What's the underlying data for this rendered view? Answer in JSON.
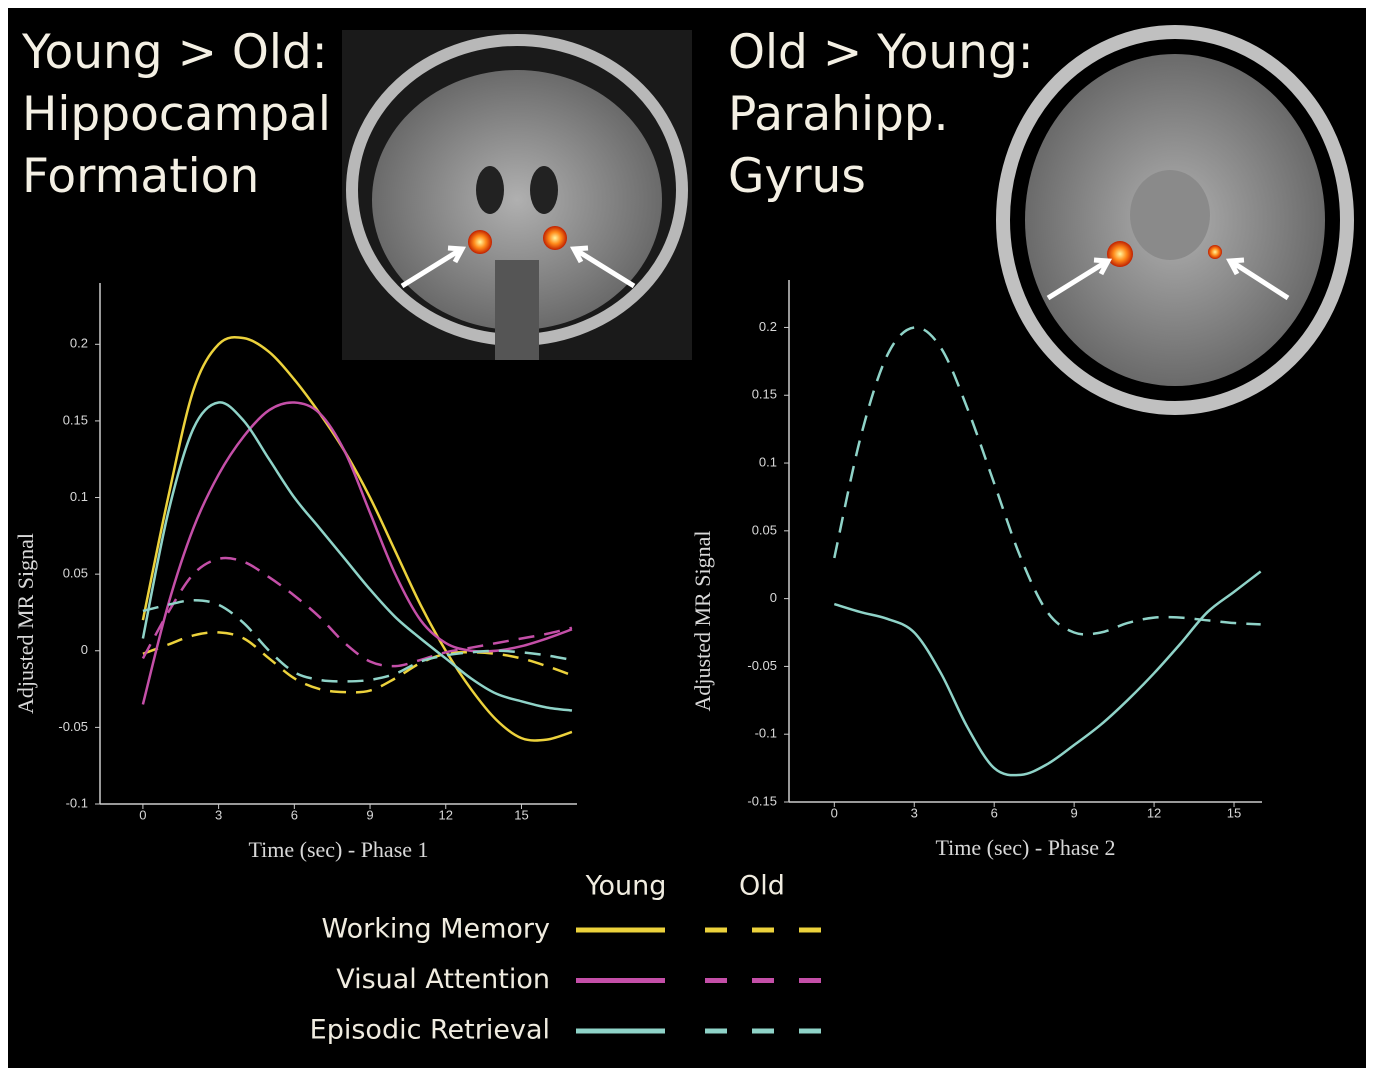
{
  "chart_data": [
    {
      "type": "line",
      "title": [
        "Young > Old:",
        "Hippocampal",
        "Formation"
      ],
      "x_label": "Time (sec) - Phase 1",
      "y_label": "Adjusted MR Signal",
      "x": [
        0,
        1,
        2,
        3,
        4,
        5,
        6,
        7,
        8,
        9,
        10,
        11,
        12,
        13,
        14,
        15,
        16,
        17
      ],
      "xlim": [
        -1.7,
        17.2
      ],
      "xticks": [
        0,
        3,
        6,
        9,
        12,
        15
      ],
      "ylim": [
        -0.1,
        0.24
      ],
      "yticks": [
        0.2,
        0.15,
        0.1,
        0.05,
        0,
        -0.05,
        -0.1
      ],
      "series": [
        {
          "name": "Working Memory",
          "group": "Young",
          "color": "#ecd23c",
          "dashed": false,
          "values": [
            0.02,
            0.1,
            0.17,
            0.2,
            0.204,
            0.195,
            0.177,
            0.155,
            0.13,
            0.1,
            0.065,
            0.03,
            0.0,
            -0.025,
            -0.045,
            -0.057,
            -0.058,
            -0.053
          ]
        },
        {
          "name": "Working Memory",
          "group": "Old",
          "color": "#ecd23c",
          "dashed": true,
          "values": [
            -0.002,
            0.004,
            0.01,
            0.012,
            0.008,
            -0.005,
            -0.018,
            -0.025,
            -0.027,
            -0.026,
            -0.018,
            -0.008,
            -0.002,
            -0.001,
            -0.002,
            -0.005,
            -0.01,
            -0.016
          ]
        },
        {
          "name": "Visual Attention",
          "group": "Young",
          "color": "#c44fa8",
          "dashed": false,
          "values": [
            -0.035,
            0.03,
            0.08,
            0.115,
            0.14,
            0.157,
            0.162,
            0.155,
            0.13,
            0.09,
            0.05,
            0.02,
            0.005,
            0.0,
            0.0,
            0.003,
            0.008,
            0.014
          ]
        },
        {
          "name": "Visual Attention",
          "group": "Old",
          "color": "#c44fa8",
          "dashed": true,
          "values": [
            -0.005,
            0.025,
            0.05,
            0.06,
            0.058,
            0.048,
            0.036,
            0.022,
            0.005,
            -0.007,
            -0.01,
            -0.006,
            -0.001,
            0.002,
            0.005,
            0.008,
            0.011,
            0.015
          ]
        },
        {
          "name": "Episodic Retrieval",
          "group": "Young",
          "color": "#8fd3c8",
          "dashed": false,
          "values": [
            0.008,
            0.09,
            0.145,
            0.162,
            0.15,
            0.125,
            0.1,
            0.08,
            0.06,
            0.04,
            0.022,
            0.008,
            -0.005,
            -0.018,
            -0.028,
            -0.033,
            -0.037,
            -0.039
          ]
        },
        {
          "name": "Episodic Retrieval",
          "group": "Old",
          "color": "#8fd3c8",
          "dashed": true,
          "values": [
            0.026,
            0.03,
            0.033,
            0.03,
            0.018,
            0.0,
            -0.014,
            -0.019,
            -0.02,
            -0.019,
            -0.015,
            -0.007,
            -0.003,
            -0.001,
            0.0,
            -0.001,
            -0.003,
            -0.006
          ]
        }
      ]
    },
    {
      "type": "line",
      "title": [
        "Old > Young:",
        "Parahipp.",
        "Gyrus"
      ],
      "x_label": "Time (sec) - Phase 2",
      "y_label": "Adjusted MR Signal",
      "x": [
        0,
        1,
        2,
        3,
        4,
        5,
        6,
        7,
        8,
        9,
        10,
        11,
        12,
        13,
        14,
        15,
        16
      ],
      "xlim": [
        -1.7,
        16.05
      ],
      "xticks": [
        0,
        3,
        6,
        9,
        12,
        15
      ],
      "ylim": [
        -0.15,
        0.235
      ],
      "yticks": [
        0.2,
        0.15,
        0.1,
        0.05,
        0,
        -0.05,
        -0.1,
        -0.15
      ],
      "series": [
        {
          "name": "Episodic Retrieval",
          "group": "Young",
          "color": "#8fd3c8",
          "dashed": false,
          "values": [
            -0.004,
            -0.01,
            -0.015,
            -0.025,
            -0.055,
            -0.095,
            -0.125,
            -0.13,
            -0.122,
            -0.108,
            -0.093,
            -0.075,
            -0.055,
            -0.033,
            -0.01,
            0.005,
            0.02
          ]
        },
        {
          "name": "Episodic Retrieval",
          "group": "Old",
          "color": "#8fd3c8",
          "dashed": true,
          "values": [
            0.03,
            0.12,
            0.18,
            0.2,
            0.185,
            0.14,
            0.085,
            0.03,
            -0.01,
            -0.025,
            -0.025,
            -0.018,
            -0.014,
            -0.014,
            -0.016,
            -0.018,
            -0.019
          ]
        }
      ]
    }
  ]
}
